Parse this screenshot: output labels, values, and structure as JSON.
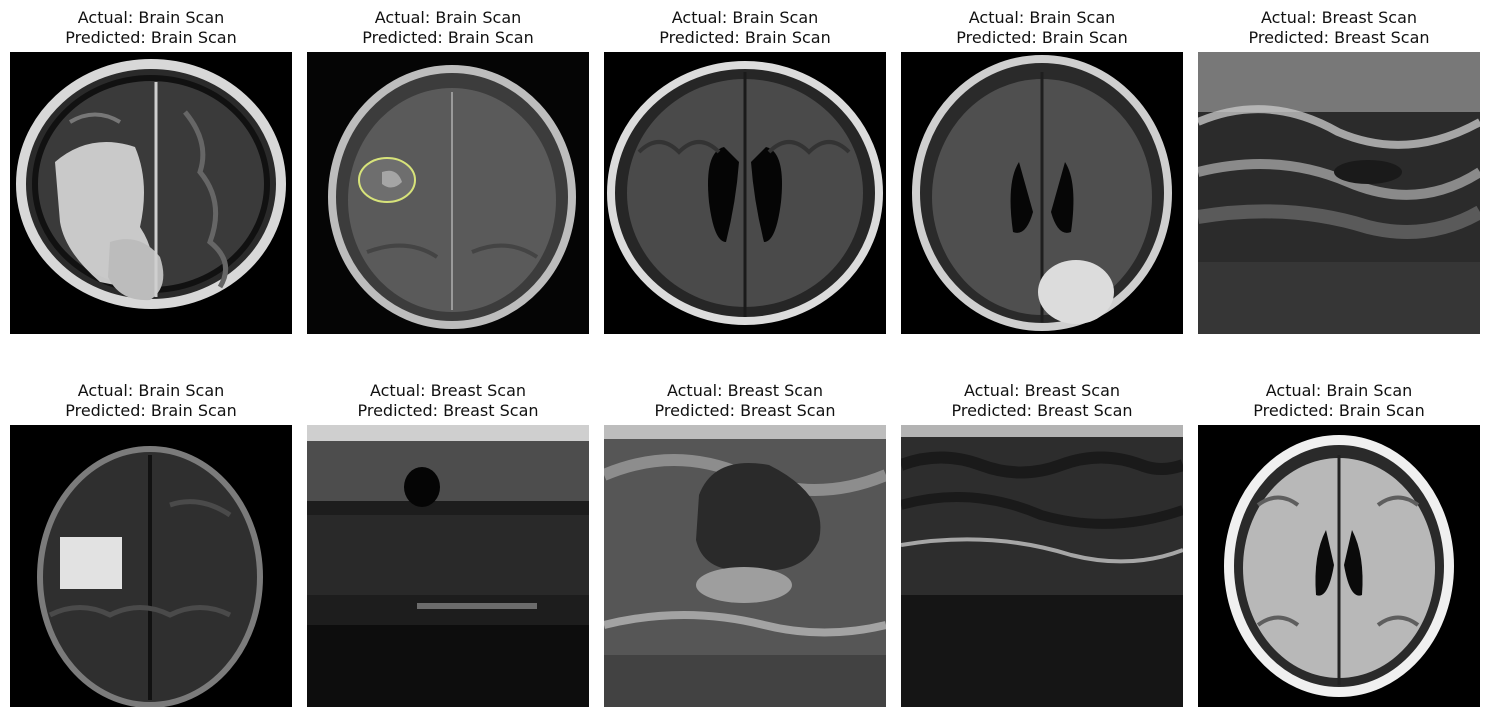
{
  "panels": [
    {
      "actual": "Actual: Brain Scan",
      "predicted": "Predicted: Brain Scan",
      "kind": "brain"
    },
    {
      "actual": "Actual: Brain Scan",
      "predicted": "Predicted: Brain Scan",
      "kind": "brain"
    },
    {
      "actual": "Actual: Brain Scan",
      "predicted": "Predicted: Brain Scan",
      "kind": "brain"
    },
    {
      "actual": "Actual: Brain Scan",
      "predicted": "Predicted: Brain Scan",
      "kind": "brain"
    },
    {
      "actual": "Actual: Breast Scan",
      "predicted": "Predicted: Breast Scan",
      "kind": "breast"
    },
    {
      "actual": "Actual: Brain Scan",
      "predicted": "Predicted: Brain Scan",
      "kind": "brain"
    },
    {
      "actual": "Actual: Breast Scan",
      "predicted": "Predicted: Breast Scan",
      "kind": "breast"
    },
    {
      "actual": "Actual: Breast Scan",
      "predicted": "Predicted: Breast Scan",
      "kind": "breast"
    },
    {
      "actual": "Actual: Breast Scan",
      "predicted": "Predicted: Breast Scan",
      "kind": "breast"
    },
    {
      "actual": "Actual: Brain Scan",
      "predicted": "Predicted: Brain Scan",
      "kind": "brain"
    }
  ]
}
